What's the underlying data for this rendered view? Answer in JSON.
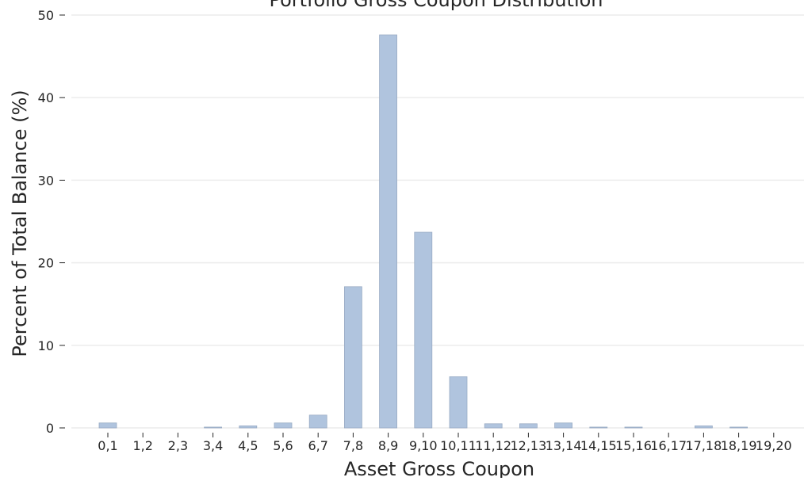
{
  "chart_data": {
    "type": "bar",
    "title": "Portfolio Gross Coupon Distribution",
    "xlabel": "Asset Gross Coupon",
    "ylabel": "Percent of Total Balance (%)",
    "categories": [
      "0,1",
      "1,2",
      "2,3",
      "3,4",
      "4,5",
      "5,6",
      "6,7",
      "7,8",
      "8,9",
      "9,10",
      "10,11",
      "11,12",
      "12,13",
      "13,14",
      "14,15",
      "15,16",
      "16,17",
      "17,18",
      "18,19",
      "19,20"
    ],
    "values": [
      0.6,
      0.0,
      0.0,
      0.1,
      0.25,
      0.6,
      1.55,
      17.1,
      47.6,
      23.7,
      6.2,
      0.5,
      0.5,
      0.6,
      0.1,
      0.1,
      0.0,
      0.25,
      0.1,
      0.0
    ],
    "ylim": [
      0,
      50
    ],
    "yticks": [
      0,
      10,
      20,
      30,
      40,
      50
    ],
    "grid": true,
    "bar_color": "#b0c4de",
    "bar_edge_color": "#9aacc4",
    "grid_color": "#ececec"
  }
}
